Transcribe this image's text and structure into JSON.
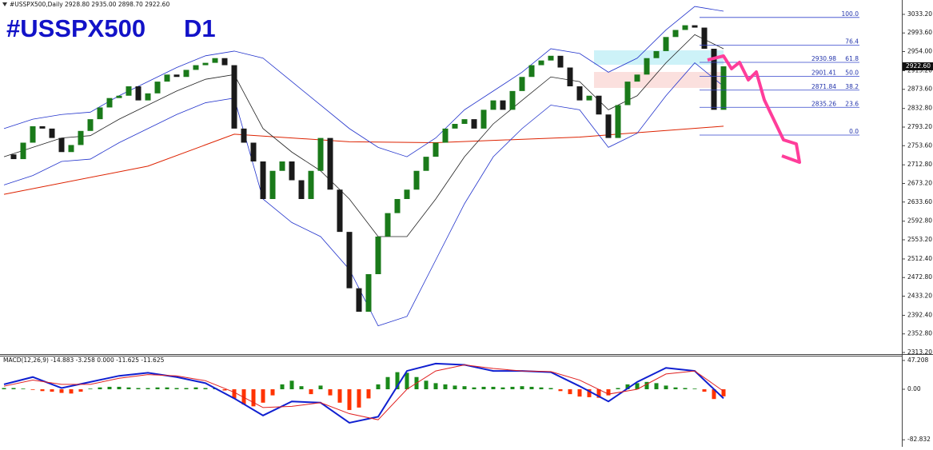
{
  "chart_data": [
    {
      "type": "candlestick",
      "title": "#USSPX500",
      "timeframe": "D1",
      "header": "#USSPX500,Daily  2928.80 2935.00 2898.70 2922.60",
      "ylim": [
        2309.8,
        3063.8
      ],
      "yticks": [
        {
          "value": 3033.2,
          "label": "3033.20"
        },
        {
          "value": 2993.6,
          "label": "2993.60"
        },
        {
          "value": 2954.0,
          "label": "2954.00"
        },
        {
          "value": 2913.2,
          "label": "2913.20"
        },
        {
          "value": 2873.6,
          "label": "2873.60"
        },
        {
          "value": 2832.8,
          "label": "2832.80"
        },
        {
          "value": 2793.2,
          "label": "2793.20"
        },
        {
          "value": 2753.6,
          "label": "2753.60"
        },
        {
          "value": 2712.8,
          "label": "2712.80"
        },
        {
          "value": 2673.2,
          "label": "2673.20"
        },
        {
          "value": 2633.6,
          "label": "2633.60"
        },
        {
          "value": 2592.8,
          "label": "2592.80"
        },
        {
          "value": 2553.2,
          "label": "2553.20"
        },
        {
          "value": 2512.4,
          "label": "2512.40"
        },
        {
          "value": 2472.8,
          "label": "2472.80"
        },
        {
          "value": 2433.2,
          "label": "2433.20"
        },
        {
          "value": 2392.4,
          "label": "2392.40"
        },
        {
          "value": 2352.8,
          "label": "2352.80"
        },
        {
          "value": 2313.2,
          "label": "2313.20"
        }
      ],
      "closes": [
        2735,
        2725,
        2760,
        2795,
        2790,
        2770,
        2740,
        2755,
        2785,
        2810,
        2835,
        2855,
        2860,
        2880,
        2850,
        2865,
        2890,
        2905,
        2900,
        2915,
        2925,
        2930,
        2940,
        2925,
        2790,
        2760,
        2720,
        2640,
        2700,
        2720,
        2680,
        2640,
        2700,
        2770,
        2660,
        2570,
        2450,
        2400,
        2480,
        2560,
        2610,
        2640,
        2660,
        2700,
        2730,
        2760,
        2790,
        2800,
        2810,
        2790,
        2830,
        2850,
        2830,
        2870,
        2900,
        2925,
        2935,
        2945,
        2920,
        2880,
        2850,
        2860,
        2820,
        2770,
        2840,
        2890,
        2905,
        2940,
        2955,
        2985,
        3000,
        3010,
        3005,
        2960,
        2830,
        2922.6
      ],
      "up_color": "#1a7a1a",
      "down_color": "#1a1a1a",
      "bands": {
        "x": [
          0,
          3,
          6,
          9,
          12,
          15,
          18,
          21,
          24,
          27,
          30,
          33,
          36,
          39,
          42,
          45,
          48,
          51,
          54,
          57,
          60,
          63,
          66,
          69,
          72,
          75
        ],
        "upper": [
          2790,
          2810,
          2820,
          2825,
          2860,
          2890,
          2920,
          2945,
          2955,
          2940,
          2890,
          2840,
          2790,
          2750,
          2730,
          2770,
          2830,
          2870,
          2910,
          2960,
          2950,
          2910,
          2940,
          3000,
          3050,
          3040
        ],
        "middle": [
          2730,
          2750,
          2770,
          2775,
          2810,
          2840,
          2870,
          2895,
          2905,
          2790,
          2740,
          2700,
          2640,
          2560,
          2560,
          2640,
          2730,
          2800,
          2850,
          2900,
          2890,
          2830,
          2860,
          2930,
          2990,
          2960
        ],
        "lower": [
          2670,
          2690,
          2720,
          2725,
          2760,
          2790,
          2820,
          2845,
          2855,
          2640,
          2590,
          2560,
          2490,
          2370,
          2390,
          2510,
          2630,
          2730,
          2790,
          2840,
          2830,
          2750,
          2780,
          2860,
          2930,
          2880
        ],
        "band_color": "#2233cc",
        "middle_color": "#222222"
      },
      "ma200": {
        "x": [
          0,
          15,
          24,
          36,
          45,
          60,
          75
        ],
        "values": [
          2650,
          2710,
          2778,
          2762,
          2760,
          2772,
          2795
        ],
        "color": "#dd2200"
      },
      "fib": {
        "color": "#3344cc",
        "levels": [
          {
            "level": "100.0",
            "position": 3026.7
          },
          {
            "level": "76.4",
            "position": 2967.6
          },
          {
            "level": "61.8",
            "price": 2930.98
          },
          {
            "level": "50.0",
            "price": 2901.41
          },
          {
            "level": "38.2",
            "price": 2871.84
          },
          {
            "level": "23.6",
            "price": 2835.26
          },
          {
            "level": "0.0",
            "position": 2776.1
          }
        ]
      },
      "price_marker": {
        "value": 2922.6,
        "label": "2922.60"
      }
    },
    {
      "type": "macd",
      "label": "MACD(12,26,9) -14.883 -3.258 0.000 -11.625 -11.625",
      "ylim": [
        -91.7,
        53.7
      ],
      "yticks": [
        47.208,
        {
          "value": 0,
          "label": "0.00"
        },
        -82.832
      ],
      "histogram": {
        "values": [
          2,
          2,
          1,
          -1,
          -3,
          -4,
          -6,
          -7,
          -4,
          1,
          3,
          4,
          4,
          3,
          2,
          2,
          3,
          3,
          2,
          2,
          3,
          2,
          2,
          -2,
          -15,
          -25,
          -28,
          -22,
          -10,
          8,
          14,
          5,
          -8,
          6,
          -10,
          -22,
          -34,
          -30,
          -15,
          8,
          20,
          28,
          27,
          20,
          14,
          10,
          8,
          6,
          5,
          3,
          4,
          4,
          3,
          4,
          5,
          4,
          3,
          2,
          -3,
          -8,
          -12,
          -13,
          -14,
          -10,
          2,
          8,
          10,
          12,
          10,
          6,
          3,
          2,
          1,
          -4,
          -16,
          -11.625
        ],
        "up_color": "#1a8a1a",
        "down_color": "#ff3300"
      },
      "x": [
        0,
        3,
        6,
        9,
        12,
        15,
        18,
        21,
        24,
        27,
        30,
        33,
        36,
        39,
        42,
        45,
        48,
        51,
        54,
        57,
        60,
        63,
        66,
        69,
        72,
        75
      ],
      "macd": {
        "values": [
          8,
          20,
          2,
          12,
          22,
          27,
          20,
          10,
          -15,
          -43,
          -20,
          -22,
          -55,
          -45,
          30,
          42,
          40,
          30,
          30,
          28,
          5,
          -20,
          12,
          35,
          30,
          -14.883
        ],
        "color": "#1020d0"
      },
      "signal": {
        "values": [
          5,
          15,
          8,
          8,
          18,
          24,
          22,
          14,
          -5,
          -30,
          -28,
          -22,
          -40,
          -50,
          0,
          30,
          40,
          34,
          30,
          29,
          15,
          -8,
          0,
          25,
          30,
          -3.258
        ],
        "color": "#e02020"
      }
    }
  ]
}
